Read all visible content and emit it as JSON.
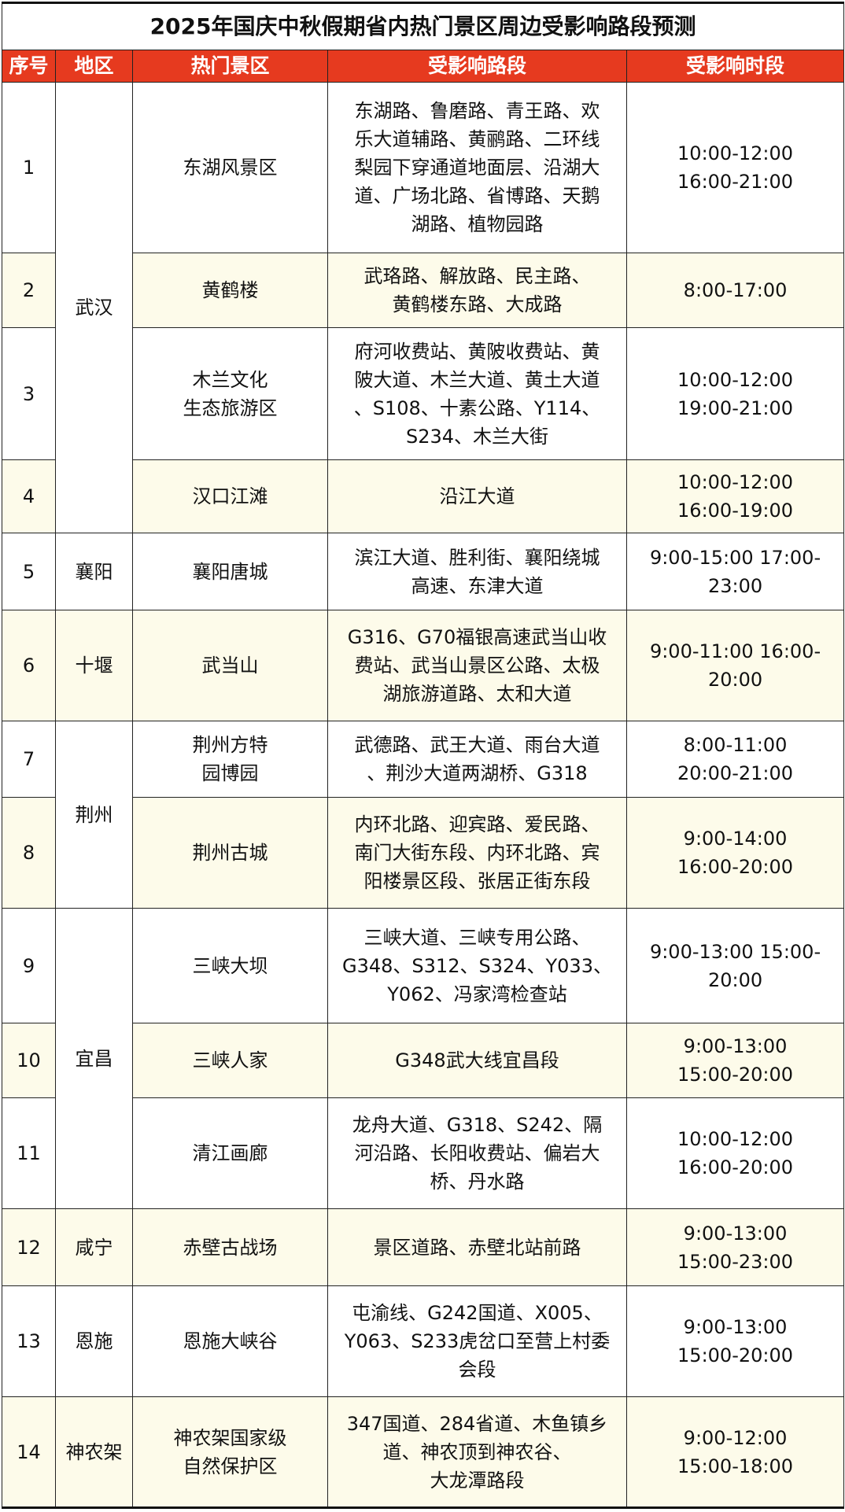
{
  "title": "2025年国庆中秋假期省内热门景区周边受影响路段预测",
  "colors": {
    "header_bg": "#e63a1f",
    "alt_row_bg": "#fdfbea"
  },
  "headers": [
    "序号",
    "地区",
    "热门景区",
    "受影响路段",
    "受影响时段"
  ],
  "rows": [
    {
      "no": "1",
      "region": "武汉",
      "spot": "东湖风景区",
      "roads": "东湖路、鲁磨路、青王路、欢\n乐大道辅路、黄鹂路、二环线\n梨园下穿通道地面层、沿湖大\n道、广场北路、省博路、天鹅\n湖路、植物园路",
      "time": "10:00-12:00\n16:00-21:00"
    },
    {
      "no": "2",
      "region": "",
      "spot": "黄鹤楼",
      "roads": "武珞路、解放路、民主路、\n黄鹤楼东路、大成路",
      "time": "8:00-17:00"
    },
    {
      "no": "3",
      "region": "",
      "spot": "木兰文化\n生态旅游区",
      "roads": "府河收费站、黄陂收费站、黄\n陂大道、木兰大道、黄土大道\n、S108、十素公路、Y114、\nS234、木兰大街",
      "time": "10:00-12:00\n19:00-21:00"
    },
    {
      "no": "4",
      "region": "",
      "spot": "汉口江滩",
      "roads": "沿江大道",
      "time": "10:00-12:00\n16:00-19:00"
    },
    {
      "no": "5",
      "region": "襄阳",
      "spot": "襄阳唐城",
      "roads": "滨江大道、胜利街、襄阳绕城\n高速、东津大道",
      "time": "9:00-15:00 17:00-\n23:00"
    },
    {
      "no": "6",
      "region": "十堰",
      "spot": "武当山",
      "roads": "G316、G70福银高速武当山收\n费站、武当山景区公路、太极\n湖旅游道路、太和大道",
      "time": "9:00-11:00 16:00-\n20:00"
    },
    {
      "no": "7",
      "region": "荆州",
      "spot": "荆州方特\n园博园",
      "roads": "武德路、武王大道、雨台大道\n、荆沙大道两湖桥、G318",
      "time": "8:00-11:00\n20:00-21:00"
    },
    {
      "no": "8",
      "region": "",
      "spot": "荆州古城",
      "roads": "内环北路、迎宾路、爱民路、\n南门大街东段、内环北路、宾\n阳楼景区段、张居正街东段",
      "time": "9:00-14:00\n16:00-20:00"
    },
    {
      "no": "9",
      "region": "宜昌",
      "spot": "三峡大坝",
      "roads": "三峡大道、三峡专用公路、\nG348、S312、S324、Y033、\nY062、冯家湾检查站",
      "time": "9:00-13:00 15:00-\n20:00"
    },
    {
      "no": "10",
      "region": "",
      "spot": "三峡人家",
      "roads": "G348武大线宜昌段",
      "time": "9:00-13:00\n15:00-20:00"
    },
    {
      "no": "11",
      "region": "",
      "spot": "清江画廊",
      "roads": "龙舟大道、G318、S242、隔\n河沿路、长阳收费站、偏岩大\n桥、丹水路",
      "time": "10:00-12:00\n16:00-20:00"
    },
    {
      "no": "12",
      "region": "咸宁",
      "spot": "赤壁古战场",
      "roads": "景区道路、赤壁北站前路",
      "time": "9:00-13:00\n15:00-23:00"
    },
    {
      "no": "13",
      "region": "恩施",
      "spot": "恩施大峡谷",
      "roads": "屯渝线、G242国道、X005、\nY063、S233虎岔口至营上村委\n会段",
      "time": "9:00-13:00\n15:00-20:00"
    },
    {
      "no": "14",
      "region": "神农架",
      "spot": "神农架国家级\n自然保护区",
      "roads": "347国道、284省道、木鱼镇乡\n道、神农顶到神农谷、\n大龙潭路段",
      "time": "9:00-12:00\n15:00-18:00"
    }
  ]
}
